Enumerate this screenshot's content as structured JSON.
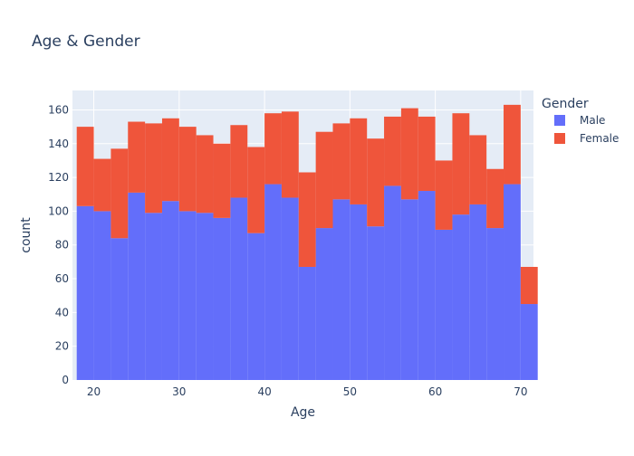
{
  "chart_data": {
    "type": "bar",
    "title": "Age & Gender",
    "xlabel": "Age",
    "ylabel": "count",
    "barmode": "stack",
    "xlim": [
      17.5,
      71.5
    ],
    "ylim": [
      0,
      171.5
    ],
    "x_ticks": [
      20,
      30,
      40,
      50,
      60,
      70
    ],
    "y_ticks": [
      0,
      20,
      40,
      60,
      80,
      100,
      120,
      140,
      160
    ],
    "grid": true,
    "legend": {
      "title": "Gender",
      "position": "top-right"
    },
    "bin_starts": [
      18,
      20,
      22,
      24,
      26,
      28,
      30,
      32,
      34,
      36,
      38,
      40,
      42,
      44,
      46,
      48,
      50,
      52,
      54,
      56,
      58,
      60,
      62,
      64,
      66,
      68,
      70
    ],
    "bin_width": 2,
    "series": [
      {
        "name": "Male",
        "color": "#636efa",
        "values": [
          103,
          100,
          84,
          111,
          99,
          106,
          100,
          99,
          96,
          108,
          87,
          116,
          108,
          67,
          90,
          107,
          104,
          91,
          115,
          107,
          112,
          89,
          98,
          104,
          90,
          116,
          45
        ]
      },
      {
        "name": "Female",
        "color": "#ef553b",
        "values": [
          47,
          31,
          53,
          42,
          53,
          49,
          50,
          46,
          44,
          43,
          51,
          42,
          51,
          56,
          57,
          45,
          51,
          52,
          41,
          54,
          44,
          41,
          60,
          41,
          35,
          47,
          22
        ]
      }
    ],
    "plot_bgcolor": "#e5ecf6",
    "text_color": "#2a3f5f"
  }
}
